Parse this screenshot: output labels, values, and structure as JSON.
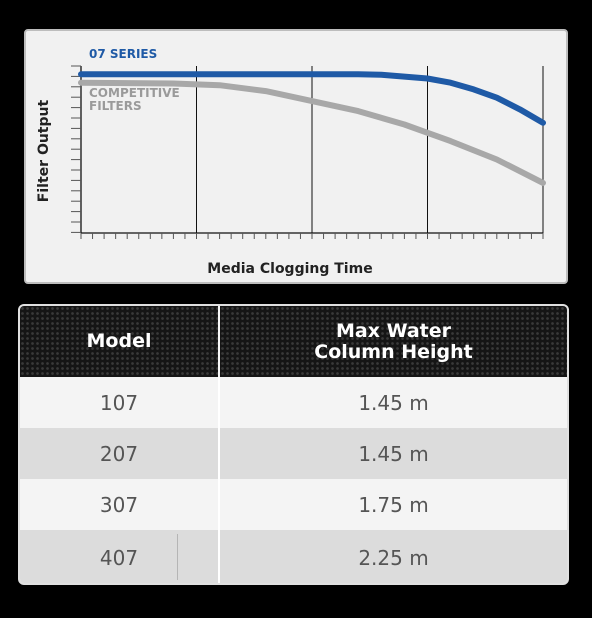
{
  "chart_data": {
    "type": "line",
    "xlabel": "Media Clogging Time",
    "ylabel": "Filter Output",
    "xlim": [
      0,
      100
    ],
    "ylim": [
      0,
      100
    ],
    "grid": "vertical",
    "series": [
      {
        "name": "07 SERIES",
        "color": "#1f5aa6",
        "x": [
          0,
          20,
          40,
          60,
          65,
          75,
          80,
          85,
          90,
          95,
          100
        ],
        "y": [
          95,
          95,
          95,
          95,
          94.8,
          92.5,
          90,
          86,
          81,
          74,
          66
        ]
      },
      {
        "name": "COMPETITIVE FILTERS",
        "color": "#a8a8a8",
        "x": [
          0,
          20,
          30,
          40,
          50,
          60,
          70,
          80,
          90,
          100
        ],
        "y": [
          90,
          89.5,
          88.5,
          85,
          79,
          73,
          65,
          55,
          44,
          30
        ]
      }
    ]
  },
  "table": {
    "headers": {
      "model": "Model",
      "height": "Max Water Column Height"
    },
    "rows": [
      {
        "model": "107",
        "height": "1.45 m"
      },
      {
        "model": "207",
        "height": "1.45 m"
      },
      {
        "model": "307",
        "height": "1.75 m"
      },
      {
        "model": "407",
        "height": "2.25 m"
      }
    ]
  }
}
